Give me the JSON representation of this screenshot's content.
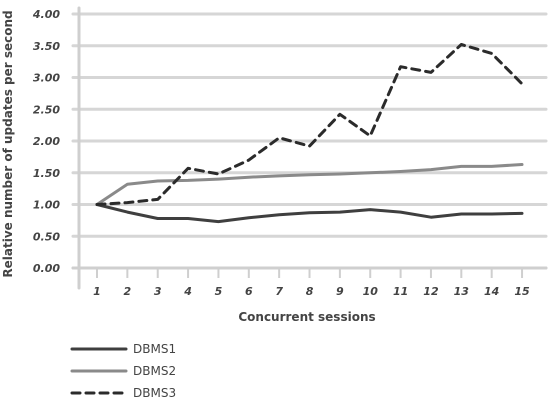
{
  "chart_data": {
    "type": "line",
    "title": "",
    "xlabel": "Concurrent sessions",
    "ylabel": "Relative number of updates per second",
    "x": [
      1,
      2,
      3,
      4,
      5,
      6,
      7,
      8,
      9,
      10,
      11,
      12,
      13,
      14,
      15
    ],
    "ylim": [
      0,
      4
    ],
    "yticks": [
      "0.00",
      "0.50",
      "1.00",
      "1.50",
      "2.00",
      "2.50",
      "3.00",
      "3.50",
      "4.00"
    ],
    "grid": "horizontal",
    "legend_position": "bottom-left",
    "series": [
      {
        "name": "DBMS1",
        "color": "#3f3f3f",
        "dash": "solid",
        "values": [
          1.0,
          0.88,
          0.78,
          0.78,
          0.73,
          0.79,
          0.84,
          0.87,
          0.88,
          0.92,
          0.88,
          0.8,
          0.85,
          0.85,
          0.86
        ]
      },
      {
        "name": "DBMS2",
        "color": "#8a8a8a",
        "dash": "solid",
        "values": [
          1.0,
          1.32,
          1.37,
          1.38,
          1.4,
          1.43,
          1.45,
          1.47,
          1.48,
          1.5,
          1.52,
          1.55,
          1.6,
          1.6,
          1.63
        ]
      },
      {
        "name": "DBMS3",
        "color": "#2b2b2b",
        "dash": "dashed",
        "values": [
          1.0,
          1.03,
          1.08,
          1.57,
          1.48,
          1.7,
          2.05,
          1.92,
          2.42,
          2.08,
          3.17,
          3.08,
          3.52,
          3.38,
          2.9
        ]
      }
    ]
  }
}
